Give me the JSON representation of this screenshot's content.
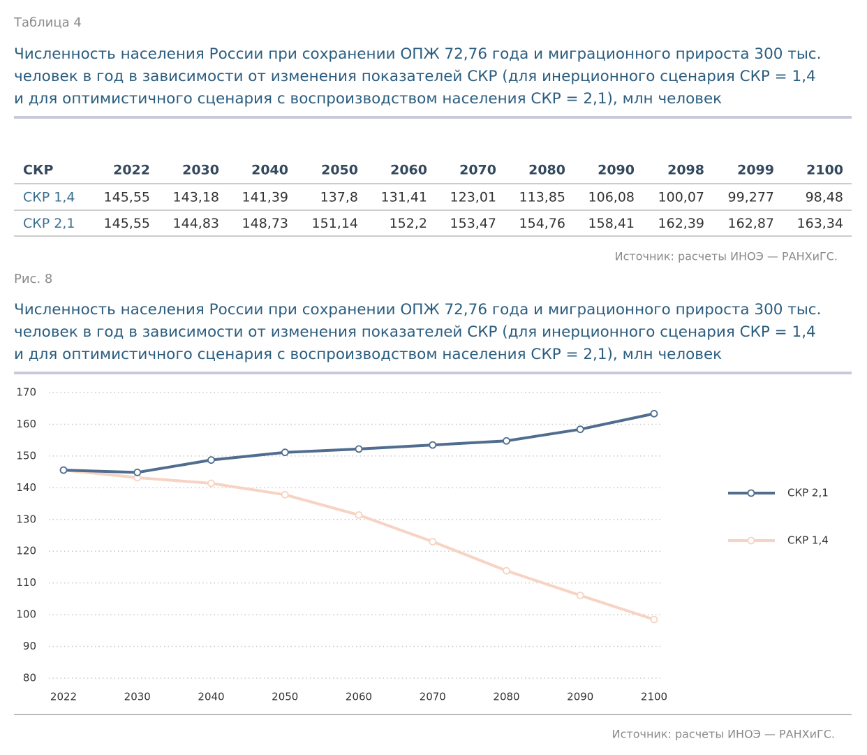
{
  "table_section": {
    "label": "Таблица 4",
    "title": [
      "Численность населения России при сохранении ОПЖ 72,76 года и миграционного прироста 300 тыс.",
      "человек в год в зависимости от изменения показателей СКР (для инерционного сценария СКР = 1,4",
      "и для оптимистичного сценария с воспроизводством населения СКР = 2,1), млн человек"
    ],
    "header": [
      "СКР",
      "2022",
      "2030",
      "2040",
      "2050",
      "2060",
      "2070",
      "2080",
      "2090",
      "2098",
      "2099",
      "2100"
    ],
    "rows": [
      [
        "СКР 1,4",
        "145,55",
        "143,18",
        "141,39",
        "137,8",
        "131,41",
        "123,01",
        "113,85",
        "106,08",
        "100,07",
        "99,277",
        "98,48"
      ],
      [
        "СКР 2,1",
        "145,55",
        "144,83",
        "148,73",
        "151,14",
        "152,2",
        "153,47",
        "154,76",
        "158,41",
        "162,39",
        "162,87",
        "163,34"
      ]
    ],
    "source": "Источник: расчеты ИНОЭ — РАНХиГС."
  },
  "figure_section": {
    "label": "Рис. 8",
    "title": [
      "Численность населения России при сохранении ОПЖ 72,76 года и миграционного прироста 300 тыс.",
      "человек в год в зависимости от изменения показателей СКР (для инерционного сценария СКР = 1,4",
      "и для оптимистичного сценария с воспроизводством населения СКР = 2,1), млн человек"
    ],
    "source": "Источник: расчеты ИНОЭ — РАНХиГС."
  },
  "chart_data": {
    "type": "line",
    "categories": [
      "2022",
      "2030",
      "2040",
      "2050",
      "2060",
      "2070",
      "2080",
      "2090",
      "2100"
    ],
    "series": [
      {
        "name": "СКР 2,1",
        "color": "#506d8f",
        "values": [
          145.55,
          144.83,
          148.73,
          151.14,
          152.2,
          153.47,
          154.76,
          158.41,
          163.34
        ]
      },
      {
        "name": "СКР 1,4",
        "color": "#f7d3c3",
        "values": [
          145.55,
          143.18,
          141.39,
          137.8,
          131.41,
          123.01,
          113.85,
          106.08,
          98.48
        ]
      }
    ],
    "ylim": [
      80,
      170
    ],
    "yticks": [
      80,
      90,
      100,
      110,
      120,
      130,
      140,
      150,
      160,
      170
    ],
    "grid": true,
    "legend": "right"
  }
}
